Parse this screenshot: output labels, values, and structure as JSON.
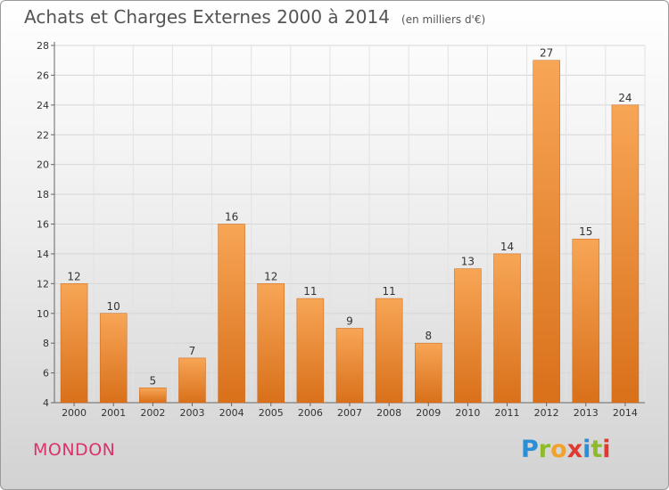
{
  "chart_data": {
    "type": "bar",
    "title": "Achats et Charges Externes 2000 à 2014",
    "unit": "(en milliers d'€)",
    "categories": [
      "2000",
      "2001",
      "2002",
      "2003",
      "2004",
      "2005",
      "2006",
      "2007",
      "2008",
      "2009",
      "2010",
      "2011",
      "2012",
      "2013",
      "2014"
    ],
    "values": [
      12,
      10,
      5,
      7,
      16,
      12,
      11,
      9,
      11,
      8,
      13,
      14,
      27,
      15,
      24
    ],
    "ylim": [
      4,
      28
    ],
    "yticks": [
      4,
      6,
      8,
      10,
      12,
      14,
      16,
      18,
      20,
      22,
      24,
      26,
      28
    ],
    "grid": true,
    "bar_color": "#f08a2c"
  },
  "commune": "MONDON",
  "logo": {
    "letters": [
      "P",
      "r",
      "o",
      "x",
      "i",
      "t",
      "i"
    ],
    "colors": [
      "#2a8fd6",
      "#8dbb2a",
      "#f2a12a",
      "#e0392f",
      "#2a8fd6",
      "#8dbb2a",
      "#e0392f"
    ]
  }
}
